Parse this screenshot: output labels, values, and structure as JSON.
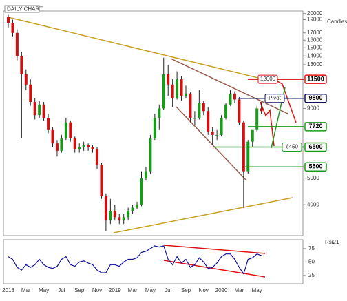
{
  "chart_data": {
    "type": "candlestick",
    "title": "DAILY CHART",
    "y_label": "Candles",
    "log_scale": true,
    "ylim": [
      3120,
      20200
    ],
    "yticks": [
      4000,
      5000,
      9000,
      13000,
      14000,
      15000,
      16000,
      17000,
      19000,
      20000
    ],
    "xticklabels": [
      "2018",
      "Mar",
      "May",
      "Jul",
      "Sep",
      "Nov",
      "2019",
      "Mar",
      "May",
      "Jul",
      "Sep",
      "Nov",
      "2020",
      "Mar",
      "May"
    ],
    "up_color": "#1a9a1a",
    "down_color": "#d01010",
    "candles": [
      [
        19500,
        19800,
        17800,
        18500
      ],
      [
        18500,
        19000,
        16500,
        17000
      ],
      [
        17000,
        17500,
        13500,
        14000
      ],
      [
        14000,
        14500,
        7000,
        12000
      ],
      [
        12000,
        12500,
        10500,
        11000
      ],
      [
        11000,
        11500,
        9200,
        9500
      ],
      [
        9500,
        9800,
        8200,
        8500
      ],
      [
        8500,
        9600,
        8300,
        9300
      ],
      [
        9300,
        9500,
        8100,
        8300
      ],
      [
        8300,
        8600,
        7300,
        7500
      ],
      [
        7500,
        7700,
        6500,
        6700
      ],
      [
        6700,
        6900,
        6000,
        6300
      ],
      [
        6300,
        7200,
        6200,
        7000
      ],
      [
        7000,
        8300,
        6900,
        8000
      ],
      [
        8000,
        8100,
        6800,
        7000
      ],
      [
        7000,
        7100,
        6200,
        6400
      ],
      [
        6400,
        6700,
        6200,
        6500
      ],
      [
        6500,
        6800,
        6300,
        6600
      ],
      [
        6600,
        6700,
        6300,
        6500
      ],
      [
        6500,
        6600,
        6200,
        6400
      ],
      [
        6400,
        6500,
        5400,
        5600
      ],
      [
        5600,
        5700,
        4200,
        4300
      ],
      [
        4300,
        4400,
        3200,
        3500
      ],
      [
        3500,
        4200,
        3400,
        3800
      ],
      [
        3800,
        4000,
        3500,
        3600
      ],
      [
        3600,
        3700,
        3400,
        3500
      ],
      [
        3500,
        3700,
        3400,
        3600
      ],
      [
        3600,
        3900,
        3500,
        3800
      ],
      [
        3800,
        4000,
        3700,
        3900
      ],
      [
        3900,
        4100,
        3850,
        4000
      ],
      [
        4000,
        5300,
        3950,
        5000
      ],
      [
        5000,
        5500,
        4900,
        5300
      ],
      [
        5300,
        7200,
        5200,
        7000
      ],
      [
        7000,
        8600,
        6900,
        8300
      ],
      [
        8300,
        9300,
        7500,
        9000
      ],
      [
        9000,
        13800,
        8900,
        12000
      ],
      [
        12000,
        13000,
        10000,
        11000
      ],
      [
        11000,
        11500,
        9100,
        9800
      ],
      [
        9800,
        12300,
        9700,
        11500
      ],
      [
        11500,
        11800,
        9600,
        10000
      ],
      [
        10000,
        10900,
        9800,
        10200
      ],
      [
        10200,
        10300,
        8000,
        8300
      ],
      [
        8300,
        8800,
        7800,
        8300
      ],
      [
        8300,
        10500,
        8200,
        9400
      ],
      [
        9400,
        9600,
        8500,
        8800
      ],
      [
        8800,
        9100,
        7200,
        7400
      ],
      [
        7400,
        7700,
        6600,
        7200
      ],
      [
        7200,
        7500,
        6900,
        7200
      ],
      [
        7200,
        8500,
        7100,
        8300
      ],
      [
        8300,
        9400,
        8200,
        9300
      ],
      [
        9300,
        10500,
        9200,
        10200
      ],
      [
        10200,
        10400,
        9400,
        9700
      ],
      [
        9700,
        9900,
        7800,
        8000
      ],
      [
        8000,
        8100,
        3900,
        5300
      ],
      [
        5300,
        6900,
        5200,
        6800
      ],
      [
        6800,
        7500,
        6500,
        7500
      ],
      [
        7500,
        9200,
        7400,
        9000
      ],
      [
        9000,
        9500,
        8600,
        8800
      ]
    ],
    "levels": [
      {
        "value": 11500,
        "color": "#e01010"
      },
      {
        "value": 9800,
        "color": "#101060"
      },
      {
        "value": 7720,
        "color": "#1a9a1a"
      },
      {
        "value": 6500,
        "color": "#1a9a1a"
      },
      {
        "value": 5500,
        "color": "#1a9a1a"
      }
    ],
    "notes": [
      "12000",
      "Pivot",
      "6450"
    ],
    "rsi": {
      "name": "Rsi21",
      "color": "#1010a0",
      "ylim": [
        12,
        89
      ],
      "yticks": [
        25,
        50,
        75
      ],
      "values": [
        60,
        55,
        40,
        35,
        45,
        40,
        45,
        55,
        45,
        40,
        38,
        42,
        55,
        60,
        45,
        42,
        50,
        52,
        48,
        45,
        35,
        30,
        30,
        45,
        45,
        42,
        50,
        55,
        55,
        58,
        68,
        70,
        75,
        80,
        78,
        80,
        55,
        45,
        60,
        48,
        55,
        40,
        45,
        58,
        50,
        38,
        40,
        48,
        60,
        65,
        65,
        55,
        40,
        28,
        55,
        58,
        65,
        62
      ]
    }
  }
}
